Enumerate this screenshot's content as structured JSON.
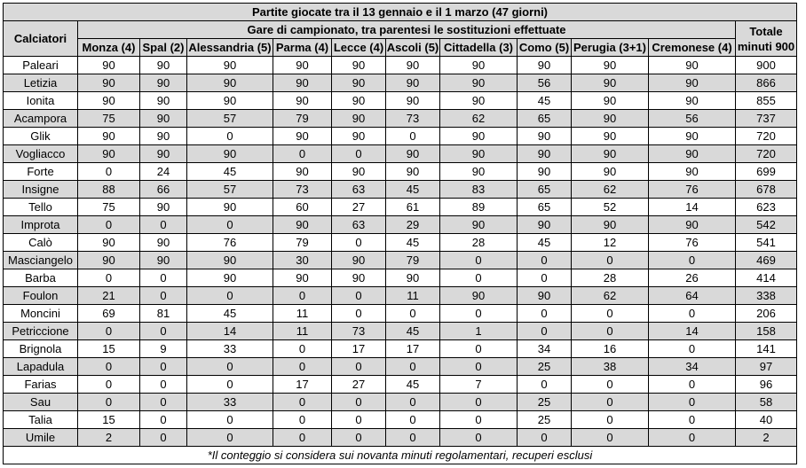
{
  "table": {
    "title": "Partite giocate tra il 13 gennaio e il 1 marzo (47 giorni)",
    "players_header": "Calciatori",
    "matches_header": "Gare di campionato, tra parentesi le sostituzioni effettuate",
    "total_header_line1": "Totale",
    "total_header_line2": "minuti 900",
    "columns": [
      "Monza (4)",
      "Spal (2)",
      "Alessandria (5)",
      "Parma (4)",
      "Lecce (4)",
      "Ascoli (5)",
      "Cittadella (3)",
      "Como (5)",
      "Perugia (3+1)",
      "Cremonese (4)"
    ],
    "rows": [
      {
        "name": "Paleari",
        "values": [
          "90",
          "90",
          "90",
          "90",
          "90",
          "90",
          "90",
          "90",
          "90",
          "90"
        ],
        "total": "900"
      },
      {
        "name": "Letizia",
        "values": [
          "90",
          "90",
          "90",
          "90",
          "90",
          "90",
          "90",
          "56",
          "90",
          "90"
        ],
        "total": "866"
      },
      {
        "name": "Ionita",
        "values": [
          "90",
          "90",
          "90",
          "90",
          "90",
          "90",
          "90",
          "45",
          "90",
          "90"
        ],
        "total": "855"
      },
      {
        "name": "Acampora",
        "values": [
          "75",
          "90",
          "57",
          "79",
          "90",
          "73",
          "62",
          "65",
          "90",
          "56"
        ],
        "total": "737"
      },
      {
        "name": "Glik",
        "values": [
          "90",
          "90",
          "0",
          "90",
          "90",
          "0",
          "90",
          "90",
          "90",
          "90"
        ],
        "total": "720"
      },
      {
        "name": "Vogliacco",
        "values": [
          "90",
          "90",
          "90",
          "0",
          "0",
          "90",
          "90",
          "90",
          "90",
          "90"
        ],
        "total": "720"
      },
      {
        "name": "Forte",
        "values": [
          "0",
          "24",
          "45",
          "90",
          "90",
          "90",
          "90",
          "90",
          "90",
          "90"
        ],
        "total": "699"
      },
      {
        "name": "Insigne",
        "values": [
          "88",
          "66",
          "57",
          "73",
          "63",
          "45",
          "83",
          "65",
          "62",
          "76"
        ],
        "total": "678"
      },
      {
        "name": "Tello",
        "values": [
          "75",
          "90",
          "90",
          "60",
          "27",
          "61",
          "89",
          "65",
          "52",
          "14"
        ],
        "total": "623"
      },
      {
        "name": "Improta",
        "values": [
          "0",
          "0",
          "0",
          "90",
          "63",
          "29",
          "90",
          "90",
          "90",
          "90"
        ],
        "total": "542"
      },
      {
        "name": "Calò",
        "values": [
          "90",
          "90",
          "76",
          "79",
          "0",
          "45",
          "28",
          "45",
          "12",
          "76"
        ],
        "total": "541"
      },
      {
        "name": "Masciangelo",
        "values": [
          "90",
          "90",
          "90",
          "30",
          "90",
          "79",
          "0",
          "0",
          "0",
          "0"
        ],
        "total": "469"
      },
      {
        "name": "Barba",
        "values": [
          "0",
          "0",
          "90",
          "90",
          "90",
          "90",
          "0",
          "0",
          "28",
          "26"
        ],
        "total": "414"
      },
      {
        "name": "Foulon",
        "values": [
          "21",
          "0",
          "0",
          "0",
          "0",
          "11",
          "90",
          "90",
          "62",
          "64"
        ],
        "total": "338"
      },
      {
        "name": "Moncini",
        "values": [
          "69",
          "81",
          "45",
          "11",
          "0",
          "0",
          "0",
          "0",
          "0",
          "0"
        ],
        "total": "206"
      },
      {
        "name": "Petriccione",
        "values": [
          "0",
          "0",
          "14",
          "11",
          "73",
          "45",
          "1",
          "0",
          "0",
          "14"
        ],
        "total": "158"
      },
      {
        "name": "Brignola",
        "values": [
          "15",
          "9",
          "33",
          "0",
          "17",
          "17",
          "0",
          "34",
          "16",
          "0"
        ],
        "total": "141"
      },
      {
        "name": "Lapadula",
        "values": [
          "0",
          "0",
          "0",
          "0",
          "0",
          "0",
          "0",
          "25",
          "38",
          "34"
        ],
        "total": "97"
      },
      {
        "name": "Farias",
        "values": [
          "0",
          "0",
          "0",
          "17",
          "27",
          "45",
          "7",
          "0",
          "0",
          "0"
        ],
        "total": "96"
      },
      {
        "name": "Sau",
        "values": [
          "0",
          "0",
          "33",
          "0",
          "0",
          "0",
          "0",
          "25",
          "0",
          "0"
        ],
        "total": "58"
      },
      {
        "name": "Talia",
        "values": [
          "15",
          "0",
          "0",
          "0",
          "0",
          "0",
          "0",
          "25",
          "0",
          "0"
        ],
        "total": "40"
      },
      {
        "name": "Umile",
        "values": [
          "2",
          "0",
          "0",
          "0",
          "0",
          "0",
          "0",
          "0",
          "0",
          "0"
        ],
        "total": "2"
      }
    ],
    "footnote": "*Il conteggio si considera sui novanta minuti regolamentari, recuperi esclusi"
  }
}
